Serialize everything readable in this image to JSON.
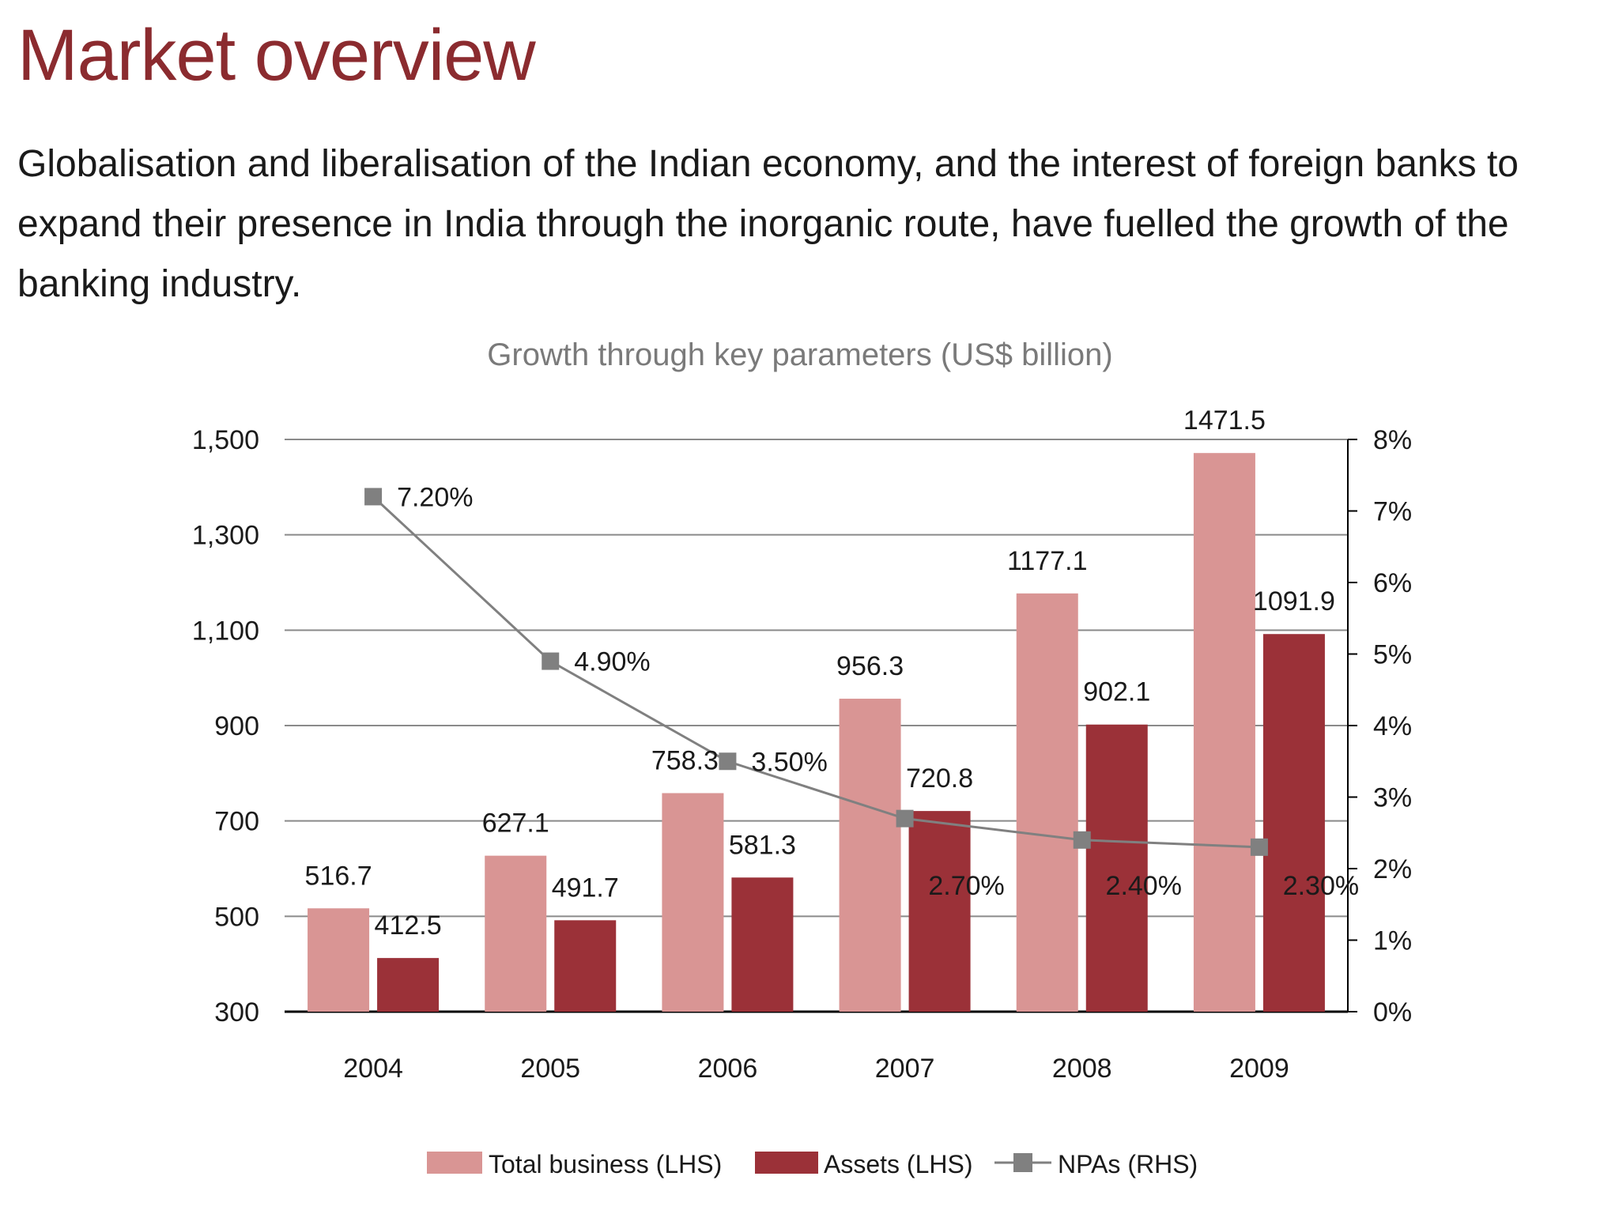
{
  "header": {
    "title": "Market overview",
    "intro": "Globalisation and liberalisation of the Indian economy,  and the interest of foreign banks to expand their presence in India through the inorganic route, have fuelled the growth of the banking industry."
  },
  "chart_data": {
    "type": "bar",
    "title": "Growth through key parameters (US$ billion)",
    "categories": [
      "2004",
      "2005",
      "2006",
      "2007",
      "2008",
      "2009"
    ],
    "series": [
      {
        "name": "Total business (LHS)",
        "kind": "bar",
        "axis": "left",
        "color": "#d99594",
        "values": [
          516.7,
          627.1,
          758.3,
          956.3,
          1177.1,
          1471.5
        ],
        "labels": [
          "516.7",
          "627.1",
          "758.3",
          "956.3",
          "1177.1",
          "1471.5"
        ]
      },
      {
        "name": "Assets (LHS)",
        "kind": "bar",
        "axis": "left",
        "color": "#9b3138",
        "values": [
          412.5,
          491.7,
          581.3,
          720.8,
          902.1,
          1091.9
        ],
        "labels": [
          "412.5",
          "491.7",
          "581.3",
          "720.8",
          "902.1",
          "1091.9"
        ]
      },
      {
        "name": "NPAs (RHS)",
        "kind": "line",
        "axis": "right",
        "color": "#808080",
        "values": [
          7.2,
          4.9,
          3.5,
          2.7,
          2.4,
          2.3
        ],
        "labels": [
          "7.20%",
          "4.90%",
          "3.50%",
          "2.70%",
          "2.40%",
          "2.30%"
        ]
      }
    ],
    "y_left": {
      "min": 300,
      "max": 1500,
      "ticks": [
        300,
        500,
        700,
        900,
        1100,
        1300,
        1500
      ],
      "tick_labels": [
        "300",
        "500",
        "700",
        "900",
        "1,100",
        "1,300",
        "1,500"
      ]
    },
    "y_right": {
      "min": 0,
      "max": 8,
      "ticks": [
        0,
        1,
        2,
        3,
        4,
        5,
        6,
        7,
        8
      ],
      "tick_labels": [
        "0%",
        "1%",
        "2%",
        "3%",
        "4%",
        "5%",
        "6%",
        "7%",
        "8%"
      ]
    },
    "grid": true,
    "legend": "bottom"
  }
}
